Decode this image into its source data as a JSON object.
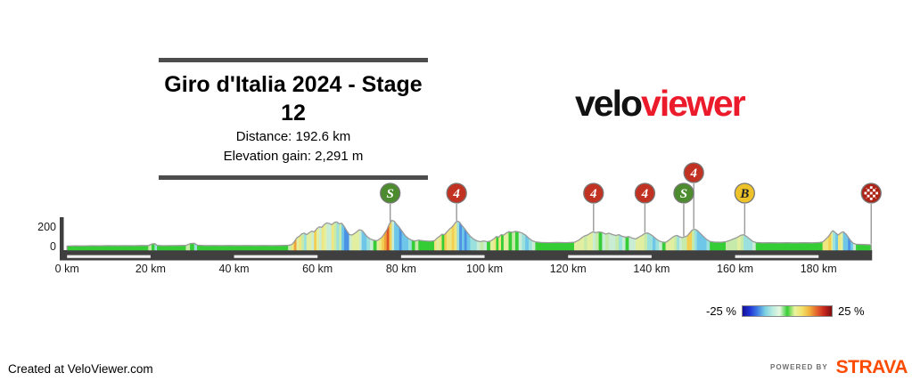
{
  "title_block": {
    "title": "Giro d'Italia 2024 - Stage 12",
    "distance": "Distance: 192.6 km",
    "elevation_gain": "Elevation gain: 2,291 m"
  },
  "logo": {
    "black": "velo",
    "red": "viewer",
    "red_color": "#EC1B2C"
  },
  "legend": {
    "min_label": "-25 %",
    "max_label": "25 %"
  },
  "footer": {
    "credit": "Created at VeloViewer.com",
    "powered_by": "POWERED BY",
    "strava": "STRAVA",
    "strava_color": "#FC4C02"
  },
  "chart_data": {
    "type": "area",
    "title": "Giro d'Italia 2024 - Stage 12 elevation profile",
    "total_km": 192.6,
    "xlabel_unit": "km",
    "ylabel_unit": "m",
    "xlim": [
      0,
      192.6
    ],
    "ylim": [
      0,
      300
    ],
    "x_ticks": [
      {
        "km": 0,
        "label": "0 km"
      },
      {
        "km": 20,
        "label": "20 km"
      },
      {
        "km": 40,
        "label": "40 km"
      },
      {
        "km": 60,
        "label": "60 km"
      },
      {
        "km": 80,
        "label": "80 km"
      },
      {
        "km": 100,
        "label": "100 km"
      },
      {
        "km": 120,
        "label": "120 km"
      },
      {
        "km": 140,
        "label": "140 km"
      },
      {
        "km": 160,
        "label": "160 km"
      },
      {
        "km": 180,
        "label": "180 km"
      }
    ],
    "y_ticks": [
      {
        "m": 0,
        "label": "0"
      },
      {
        "m": 200,
        "label": "200"
      }
    ],
    "scale_bar_blocks": [
      [
        0,
        20
      ],
      [
        40,
        60
      ],
      [
        80,
        100
      ],
      [
        120,
        140
      ],
      [
        160,
        180
      ]
    ],
    "markers": [
      {
        "km": 77.4,
        "label": "S",
        "kind": "sprint"
      },
      {
        "km": 93.3,
        "label": "4",
        "kind": "cat4"
      },
      {
        "km": 126.1,
        "label": "4",
        "kind": "cat4"
      },
      {
        "km": 138.4,
        "label": "4",
        "kind": "cat4"
      },
      {
        "km": 147.7,
        "label": "S",
        "kind": "sprint"
      },
      {
        "km": 150.1,
        "label": "4",
        "kind": "cat4",
        "raised": true
      },
      {
        "km": 162.3,
        "label": "B",
        "kind": "bonus"
      },
      {
        "km": 192.6,
        "label": "",
        "kind": "finish"
      }
    ],
    "marker_colors": {
      "sprint": {
        "fill": "#4c8c2f",
        "text": "#ffffff"
      },
      "cat4": {
        "fill": "#c23223",
        "text": "#ffffff"
      },
      "bonus": {
        "fill": "#eec32a",
        "text": "#222222"
      },
      "finish": {
        "fill": "#ad2417",
        "text": "#ffffff"
      }
    },
    "legend_range_pct": [
      -25,
      25
    ],
    "legend_stops": [
      "#141197",
      "#2135d6",
      "#3f7ce3",
      "#79cfe3",
      "#b8ecdf",
      "#e8f7e0",
      "#35cd35",
      "#eaf3a0",
      "#f2e269",
      "#f0b13c",
      "#e4622d",
      "#c5271d",
      "#7c0f10"
    ],
    "grade_colors": [
      [
        -9,
        "#2b50c8"
      ],
      [
        -6,
        "#4b92e4"
      ],
      [
        -3.5,
        "#6ec6e8"
      ],
      [
        -2,
        "#9ae0dd"
      ],
      [
        -0.8,
        "#c9ecd4"
      ],
      [
        0.8,
        "#35cd35"
      ],
      [
        2,
        "#c6eaaa"
      ],
      [
        3.5,
        "#e2efa0"
      ],
      [
        5,
        "#f0e680"
      ],
      [
        6.5,
        "#f2cf52"
      ],
      [
        9,
        "#efa23a"
      ],
      [
        12,
        "#de5426"
      ],
      [
        99,
        "#c5281e"
      ]
    ],
    "flat_color": "#35cd35",
    "outline_color": "#9a9a9a",
    "band_color": "#3f3f3f",
    "points": [
      [
        0,
        6
      ],
      [
        2,
        8
      ],
      [
        4,
        7
      ],
      [
        6,
        9
      ],
      [
        8,
        8
      ],
      [
        10,
        10
      ],
      [
        12,
        9
      ],
      [
        14,
        10
      ],
      [
        16,
        9
      ],
      [
        18,
        11
      ],
      [
        19.5,
        10
      ],
      [
        20.3,
        26
      ],
      [
        21,
        30
      ],
      [
        21.6,
        12
      ],
      [
        23,
        9
      ],
      [
        25,
        10
      ],
      [
        27,
        11
      ],
      [
        28.5,
        12
      ],
      [
        29.5,
        30
      ],
      [
        30.5,
        34
      ],
      [
        31.2,
        14
      ],
      [
        33,
        10
      ],
      [
        35,
        11
      ],
      [
        37,
        10
      ],
      [
        39,
        11
      ],
      [
        41,
        10
      ],
      [
        43,
        11
      ],
      [
        45,
        10
      ],
      [
        47,
        11
      ],
      [
        49,
        10
      ],
      [
        51,
        11
      ],
      [
        53,
        13
      ],
      [
        53.8,
        20
      ],
      [
        54.4,
        48
      ],
      [
        55,
        88
      ],
      [
        55.6,
        104
      ],
      [
        56.2,
        130
      ],
      [
        56.8,
        138
      ],
      [
        57.4,
        122
      ],
      [
        58,
        142
      ],
      [
        58.6,
        158
      ],
      [
        59.2,
        150
      ],
      [
        59.8,
        182
      ],
      [
        60.4,
        202
      ],
      [
        61,
        196
      ],
      [
        61.6,
        226
      ],
      [
        62.2,
        242
      ],
      [
        62.8,
        236
      ],
      [
        63.4,
        224
      ],
      [
        64,
        246
      ],
      [
        64.6,
        252
      ],
      [
        65.2,
        232
      ],
      [
        65.8,
        238
      ],
      [
        66.4,
        204
      ],
      [
        67,
        162
      ],
      [
        67.6,
        124
      ],
      [
        68.2,
        118
      ],
      [
        68.8,
        132
      ],
      [
        69.4,
        152
      ],
      [
        70,
        172
      ],
      [
        70.6,
        166
      ],
      [
        71.2,
        138
      ],
      [
        71.8,
        104
      ],
      [
        72.6,
        78
      ],
      [
        73.4,
        66
      ],
      [
        74.2,
        60
      ],
      [
        74.8,
        74
      ],
      [
        75.4,
        96
      ],
      [
        76,
        132
      ],
      [
        76.6,
        172
      ],
      [
        77.2,
        232
      ],
      [
        77.8,
        268
      ],
      [
        78.4,
        258
      ],
      [
        79,
        224
      ],
      [
        79.6,
        196
      ],
      [
        80.2,
        158
      ],
      [
        81,
        112
      ],
      [
        81.8,
        82
      ],
      [
        82.6,
        64
      ],
      [
        83.4,
        58
      ],
      [
        84.2,
        66
      ],
      [
        85.2,
        60
      ],
      [
        86.2,
        57
      ],
      [
        87.2,
        55
      ],
      [
        88,
        60
      ],
      [
        88.6,
        86
      ],
      [
        89.2,
        104
      ],
      [
        89.8,
        126
      ],
      [
        90.4,
        122
      ],
      [
        91,
        152
      ],
      [
        91.6,
        178
      ],
      [
        92.2,
        200
      ],
      [
        92.8,
        232
      ],
      [
        93.4,
        262
      ],
      [
        94,
        250
      ],
      [
        94.6,
        214
      ],
      [
        95.2,
        184
      ],
      [
        95.8,
        148
      ],
      [
        96.6,
        104
      ],
      [
        97.4,
        76
      ],
      [
        98.2,
        58
      ],
      [
        99,
        50
      ],
      [
        99.8,
        58
      ],
      [
        100.6,
        50
      ],
      [
        101.4,
        56
      ],
      [
        102.2,
        78
      ],
      [
        102.8,
        102
      ],
      [
        103.4,
        98
      ],
      [
        104,
        122
      ],
      [
        104.6,
        118
      ],
      [
        105.2,
        138
      ],
      [
        105.8,
        152
      ],
      [
        106.6,
        146
      ],
      [
        107.4,
        156
      ],
      [
        108.2,
        150
      ],
      [
        109,
        138
      ],
      [
        109.8,
        118
      ],
      [
        110.6,
        86
      ],
      [
        111.4,
        60
      ],
      [
        112.2,
        48
      ],
      [
        113.5,
        42
      ],
      [
        115.5,
        40
      ],
      [
        117.5,
        42
      ],
      [
        119.5,
        40
      ],
      [
        121.5,
        44
      ],
      [
        122.5,
        64
      ],
      [
        123.2,
        88
      ],
      [
        123.9,
        108
      ],
      [
        124.6,
        118
      ],
      [
        125.3,
        136
      ],
      [
        126,
        152
      ],
      [
        126.6,
        142
      ],
      [
        127.4,
        150
      ],
      [
        128.2,
        144
      ],
      [
        129,
        128
      ],
      [
        129.8,
        136
      ],
      [
        130.6,
        124
      ],
      [
        131.4,
        114
      ],
      [
        132.2,
        122
      ],
      [
        133,
        104
      ],
      [
        133.8,
        96
      ],
      [
        134.6,
        102
      ],
      [
        135.4,
        86
      ],
      [
        136.2,
        78
      ],
      [
        136.9,
        96
      ],
      [
        137.6,
        112
      ],
      [
        138.3,
        132
      ],
      [
        139,
        140
      ],
      [
        139.6,
        128
      ],
      [
        140.3,
        108
      ],
      [
        141,
        82
      ],
      [
        141.8,
        58
      ],
      [
        142.6,
        46
      ],
      [
        143.4,
        44
      ],
      [
        144.1,
        64
      ],
      [
        144.8,
        88
      ],
      [
        145.5,
        108
      ],
      [
        146.1,
        114
      ],
      [
        146.7,
        100
      ],
      [
        147.3,
        92
      ],
      [
        147.9,
        100
      ],
      [
        148.5,
        108
      ],
      [
        149.1,
        138
      ],
      [
        149.7,
        168
      ],
      [
        150.3,
        178
      ],
      [
        150.9,
        166
      ],
      [
        151.6,
        138
      ],
      [
        152.4,
        104
      ],
      [
        153.2,
        72
      ],
      [
        154,
        52
      ],
      [
        155,
        46
      ],
      [
        156.5,
        44
      ],
      [
        157.8,
        50
      ],
      [
        158.8,
        64
      ],
      [
        159.8,
        82
      ],
      [
        160.6,
        96
      ],
      [
        161.4,
        116
      ],
      [
        162.1,
        122
      ],
      [
        162.8,
        102
      ],
      [
        163.5,
        78
      ],
      [
        164.2,
        54
      ],
      [
        165,
        42
      ],
      [
        166.5,
        38
      ],
      [
        168.5,
        40
      ],
      [
        170.5,
        38
      ],
      [
        172.5,
        40
      ],
      [
        174.5,
        38
      ],
      [
        176.5,
        40
      ],
      [
        178.5,
        38
      ],
      [
        180.2,
        42
      ],
      [
        181,
        48
      ],
      [
        181.7,
        75
      ],
      [
        182.4,
        105
      ],
      [
        183.1,
        150
      ],
      [
        183.45,
        162
      ],
      [
        184.1,
        140
      ],
      [
        184.7,
        118
      ],
      [
        185.3,
        140
      ],
      [
        185.9,
        152
      ],
      [
        186.5,
        130
      ],
      [
        187.1,
        96
      ],
      [
        187.7,
        60
      ],
      [
        188.3,
        34
      ],
      [
        189,
        24
      ],
      [
        190,
        22
      ],
      [
        191.4,
        20
      ],
      [
        192.6,
        18
      ]
    ]
  }
}
